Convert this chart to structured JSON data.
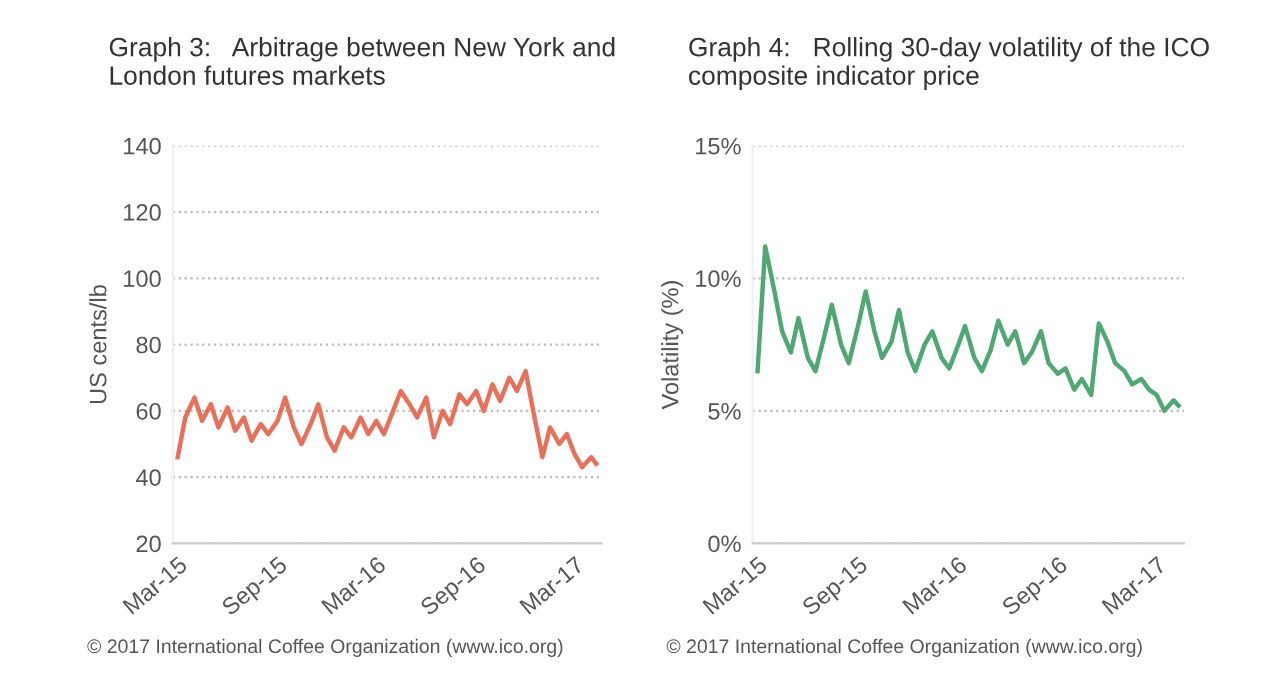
{
  "chart_data": [
    {
      "type": "line",
      "title": "Graph 3:   Arbitrage between New York and\nLondon futures markets",
      "ylabel": "US cents/lb",
      "x": [
        "2015-03-01",
        "2015-03-15",
        "2015-04-01",
        "2015-04-15",
        "2015-05-01",
        "2015-05-15",
        "2015-06-01",
        "2015-06-15",
        "2015-07-01",
        "2015-07-15",
        "2015-08-01",
        "2015-08-15",
        "2015-09-01",
        "2015-09-15",
        "2015-10-01",
        "2015-10-15",
        "2015-11-01",
        "2015-11-15",
        "2015-12-01",
        "2015-12-15",
        "2016-01-01",
        "2016-01-15",
        "2016-02-01",
        "2016-02-15",
        "2016-03-01",
        "2016-03-15",
        "2016-04-01",
        "2016-04-15",
        "2016-05-01",
        "2016-05-15",
        "2016-06-01",
        "2016-06-15",
        "2016-07-01",
        "2016-07-15",
        "2016-08-01",
        "2016-08-15",
        "2016-09-01",
        "2016-09-15",
        "2016-10-01",
        "2016-10-15",
        "2016-11-01",
        "2016-11-15",
        "2016-12-01",
        "2016-12-15",
        "2017-01-01",
        "2017-01-15",
        "2017-02-01",
        "2017-02-15",
        "2017-03-01",
        "2017-03-15",
        "2017-04-01",
        "2017-04-10"
      ],
      "series": [
        {
          "color": "#e8705a",
          "values": [
            46,
            58,
            64,
            57,
            62,
            55,
            61,
            54,
            58,
            51,
            56,
            53,
            57,
            64,
            55,
            50,
            56,
            62,
            52,
            48,
            55,
            52,
            58,
            53,
            57,
            53,
            60,
            66,
            62,
            58,
            64,
            52,
            60,
            56,
            65,
            62,
            66,
            60,
            68,
            63,
            70,
            66,
            72,
            60,
            46,
            55,
            50,
            53,
            47,
            43,
            46,
            44
          ]
        }
      ],
      "xlim": [
        "2015-02-20",
        "2017-04-20"
      ],
      "xticks": [
        {
          "value": "2015-03-01",
          "label": "Mar-15"
        },
        {
          "value": "2015-09-01",
          "label": "Sep-15"
        },
        {
          "value": "2016-03-01",
          "label": "Mar-16"
        },
        {
          "value": "2016-09-01",
          "label": "Sep-16"
        },
        {
          "value": "2017-03-01",
          "label": "Mar-17"
        }
      ],
      "ylim": [
        20,
        140
      ],
      "yticks": [
        20,
        40,
        60,
        80,
        100,
        120,
        140
      ],
      "grid": "y",
      "line_style": "solid",
      "annotations": [
        "© 2017 International Coffee Organization (www.ico.org)"
      ]
    },
    {
      "type": "line",
      "title": "Graph 4:   Rolling 30-day volatility of the ICO\ncomposite indicator price",
      "ylabel": "Volatility (%)",
      "x": [
        "2015-03-01",
        "2015-03-15",
        "2015-04-01",
        "2015-04-15",
        "2015-05-01",
        "2015-05-15",
        "2015-06-01",
        "2015-06-15",
        "2015-07-01",
        "2015-07-15",
        "2015-08-01",
        "2015-08-15",
        "2015-09-01",
        "2015-09-15",
        "2015-10-01",
        "2015-10-15",
        "2015-11-01",
        "2015-11-15",
        "2015-12-01",
        "2015-12-15",
        "2016-01-01",
        "2016-01-15",
        "2016-02-01",
        "2016-02-15",
        "2016-03-01",
        "2016-03-15",
        "2016-04-01",
        "2016-04-15",
        "2016-05-01",
        "2016-05-15",
        "2016-06-01",
        "2016-06-15",
        "2016-07-01",
        "2016-07-15",
        "2016-08-01",
        "2016-08-15",
        "2016-09-01",
        "2016-09-15",
        "2016-10-01",
        "2016-10-15",
        "2016-11-01",
        "2016-11-15",
        "2016-12-01",
        "2016-12-15",
        "2017-01-01",
        "2017-01-15",
        "2017-02-01",
        "2017-02-15",
        "2017-03-01",
        "2017-03-15",
        "2017-04-01",
        "2017-04-10"
      ],
      "series": [
        {
          "color": "#4fa872",
          "values": [
            6.5,
            11.2,
            9.5,
            8.0,
            7.2,
            8.5,
            7.0,
            6.5,
            7.8,
            9.0,
            7.5,
            6.8,
            8.2,
            9.5,
            8.0,
            7.0,
            7.6,
            8.8,
            7.2,
            6.5,
            7.5,
            8.0,
            7.0,
            6.6,
            7.4,
            8.2,
            7.0,
            6.5,
            7.3,
            8.4,
            7.5,
            8.0,
            6.8,
            7.2,
            8.0,
            6.8,
            6.4,
            6.6,
            5.8,
            6.2,
            5.6,
            8.3,
            7.6,
            6.8,
            6.5,
            6.0,
            6.2,
            5.8,
            5.6,
            5.0,
            5.4,
            5.2
          ]
        }
      ],
      "xlim": [
        "2015-02-20",
        "2017-04-20"
      ],
      "xticks": [
        {
          "value": "2015-03-01",
          "label": "Mar-15"
        },
        {
          "value": "2015-09-01",
          "label": "Sep-15"
        },
        {
          "value": "2016-03-01",
          "label": "Mar-16"
        },
        {
          "value": "2016-09-01",
          "label": "Sep-16"
        },
        {
          "value": "2017-03-01",
          "label": "Mar-17"
        }
      ],
      "ylim": [
        0,
        15
      ],
      "yticks": [
        {
          "value": 0,
          "label": "0%"
        },
        {
          "value": 5,
          "label": "5%"
        },
        {
          "value": 10,
          "label": "10%"
        },
        {
          "value": 15,
          "label": "15%"
        }
      ],
      "grid": "y",
      "line_style": "solid",
      "annotations": [
        "© 2017 International Coffee Organization (www.ico.org)"
      ]
    }
  ]
}
